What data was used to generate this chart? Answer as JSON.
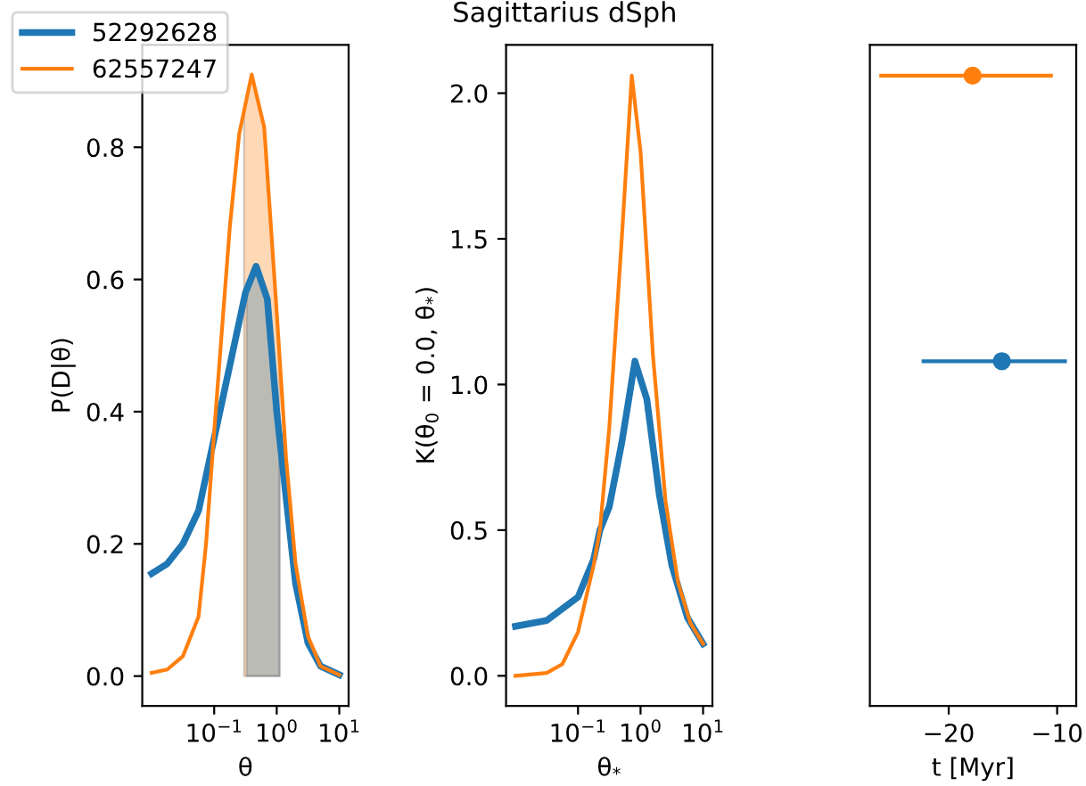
{
  "chart_data": [
    {
      "type": "line",
      "xlabel": "θ",
      "ylabel": "P(D|θ)",
      "log": "x",
      "legend": "top left",
      "xlim": [
        0.00708,
        14.1
      ],
      "xticks": [
        {
          "value": 0.1,
          "label": "10$^{−1}$"
        },
        {
          "value": 1,
          "label": "10$^{0}$"
        },
        {
          "value": 10,
          "label": "10$^{1}$"
        }
      ],
      "ylim": [
        -0.045,
        0.955
      ],
      "yticks": [
        {
          "value": 0,
          "label": "0.0"
        },
        0.2,
        0.4,
        0.6,
        0.8
      ],
      "series": [
        {
          "name": "52292628",
          "color": "#1f77b4",
          "x": [
            0.01,
            0.0178,
            0.0316,
            0.0562,
            0.1,
            0.178,
            0.316,
            0.468,
            0.708,
            1.0,
            1.41,
            2.0,
            3.16,
            5.01,
            10
          ],
          "values": [
            0.155,
            0.17,
            0.2,
            0.25,
            0.36,
            0.47,
            0.58,
            0.62,
            0.57,
            0.4,
            0.27,
            0.14,
            0.05,
            0.015,
            0.002
          ]
        },
        {
          "name": "62557247",
          "color": "#ff7f0e",
          "x": [
            0.01,
            0.0178,
            0.0316,
            0.0562,
            0.0741,
            0.1,
            0.178,
            0.251,
            0.398,
            0.631,
            1.0,
            1.41,
            2.0,
            3.16,
            5.01,
            10
          ],
          "values": [
            0.005,
            0.01,
            0.03,
            0.09,
            0.2,
            0.37,
            0.68,
            0.82,
            0.91,
            0.83,
            0.55,
            0.33,
            0.17,
            0.06,
            0.015,
            0.002
          ]
        },
        {
          "type": "area",
          "color": "#ff7f0e",
          "x": [
            0.3,
            0.398,
            0.631,
            1.0,
            1.11
          ],
          "values": [
            0.86,
            0.91,
            0.83,
            0.55,
            0.48
          ]
        },
        {
          "type": "area",
          "color": "#1f77b4",
          "x": [
            0.33,
            0.468,
            0.708,
            1.0,
            1.11
          ],
          "values": [
            0.58,
            0.62,
            0.57,
            0.4,
            0.36
          ]
        }
      ]
    },
    {
      "type": "line",
      "title": "Sagittarius dSph",
      "xlabel": "θ$_{*}$",
      "ylabel": "K(θ$_{0}$ = 0.0, θ$_{*}$)",
      "log": "x",
      "xlim": [
        0.00708,
        14.1
      ],
      "xticks": [
        {
          "value": 0.1,
          "label": "10$^{−1}$"
        },
        {
          "value": 1,
          "label": "10$^{0}$"
        },
        {
          "value": 10,
          "label": "10$^{1}$"
        }
      ],
      "ylim": [
        -0.103,
        2.166
      ],
      "yticks": [
        {
          "value": 0,
          "label": "0.0"
        },
        0.5,
        {
          "value": 1,
          "label": "1.0"
        },
        1.5,
        {
          "value": 2,
          "label": "2.0"
        }
      ],
      "series": [
        {
          "color": "#1f77b4",
          "x": [
            0.01,
            0.0316,
            0.1,
            0.178,
            0.224,
            0.316,
            0.501,
            0.813,
            1.26,
            2.0,
            3.16,
            5.62,
            10
          ],
          "values": [
            0.17,
            0.19,
            0.27,
            0.4,
            0.5,
            0.58,
            0.8,
            1.08,
            0.95,
            0.62,
            0.38,
            0.2,
            0.11
          ]
        },
        {
          "color": "#ff7f0e",
          "x": [
            0.01,
            0.0316,
            0.0562,
            0.1,
            0.178,
            0.224,
            0.316,
            0.501,
            0.724,
            1.0,
            1.58,
            2.51,
            3.98,
            6.31,
            10
          ],
          "values": [
            0.0,
            0.01,
            0.04,
            0.15,
            0.38,
            0.5,
            0.85,
            1.5,
            2.06,
            1.8,
            1.1,
            0.6,
            0.32,
            0.18,
            0.11
          ]
        }
      ]
    },
    {
      "type": "scatter",
      "xlabel": "t [Myr]",
      "marker": "circle",
      "tick_labels": "x",
      "xlim": [
        -27.27,
        -8.24
      ],
      "xticks": [
        {
          "value": -20,
          "label": "−20"
        },
        {
          "value": -10,
          "label": "−10"
        }
      ],
      "ylim": [
        -0.103,
        2.166
      ],
      "series": [
        {
          "color": "#1f77b4",
          "x": [
            -15.1
          ],
          "values": [
            1.08
          ],
          "xerrors": [
            [
              -22.5,
              -9.1
            ]
          ]
        },
        {
          "color": "#ff7f0e",
          "x": [
            -17.8
          ],
          "values": [
            2.06
          ],
          "xerrors": [
            [
              -26.4,
              -10.4
            ]
          ]
        }
      ]
    }
  ]
}
